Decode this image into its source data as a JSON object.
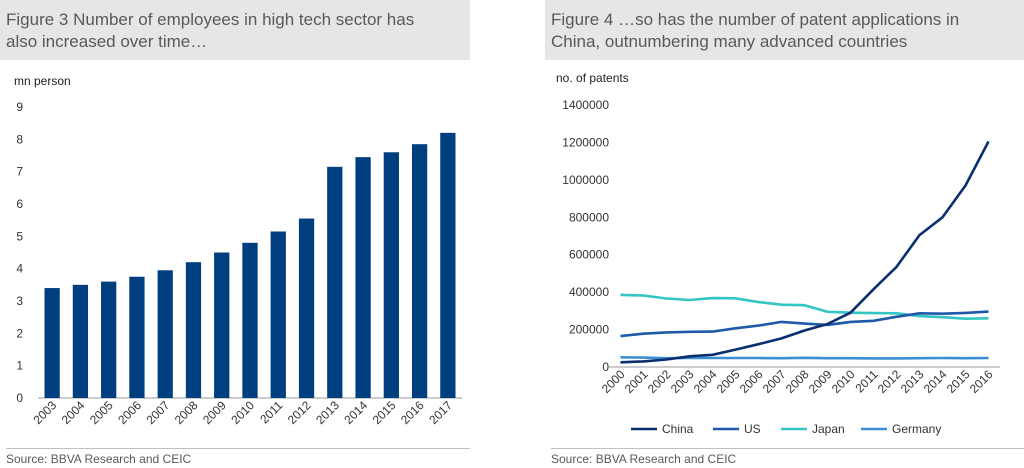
{
  "left": {
    "title_line1": "Figure 3 Number of employees in high tech sector has",
    "title_line2": "also increased over time…",
    "source": "Source: BBVA Research and CEIC"
  },
  "right": {
    "title_line1": "Figure 4 …so has the number of patent applications in",
    "title_line2": "China, outnumbering many advanced countries",
    "source": "Source: BBVA Research and CEIC"
  },
  "colors": {
    "bar": "#003f7f",
    "China": "#0a2f6e",
    "US": "#1e5aa8",
    "Japan": "#33c4c4",
    "Germany": "#3b8ed4",
    "axis": "#999999"
  },
  "chart_data": [
    {
      "type": "bar",
      "title": "Figure 3 Number of employees in high tech sector has also increased over time…",
      "ylabel": "mn person",
      "ylim": [
        0,
        9
      ],
      "yticks": [
        0,
        1,
        2,
        3,
        4,
        5,
        6,
        7,
        8,
        9
      ],
      "categories": [
        "2003",
        "2004",
        "2005",
        "2006",
        "2007",
        "2008",
        "2009",
        "2010",
        "2011",
        "2012",
        "2013",
        "2014",
        "2015",
        "2016",
        "2017"
      ],
      "values": [
        3.4,
        3.5,
        3.6,
        3.75,
        3.95,
        4.2,
        4.5,
        4.8,
        5.15,
        5.55,
        7.15,
        7.45,
        7.6,
        7.85,
        8.2
      ],
      "grid": false
    },
    {
      "type": "line",
      "title": "Figure 4 …so has the number of patent applications in China, outnumbering many advanced countries",
      "ylabel": "no. of patents",
      "ylim": [
        0,
        1400000
      ],
      "yticks": [
        0,
        200000,
        400000,
        600000,
        800000,
        1000000,
        1200000,
        1400000
      ],
      "categories": [
        "2000",
        "2001",
        "2002",
        "2003",
        "2004",
        "2005",
        "2006",
        "2007",
        "2008",
        "2009",
        "2010",
        "2011",
        "2012",
        "2013",
        "2014",
        "2015",
        "2016"
      ],
      "series": [
        {
          "name": "China",
          "values": [
            25000,
            30000,
            40000,
            57000,
            65000,
            93000,
            122000,
            153000,
            195000,
            230000,
            290000,
            415000,
            535000,
            705000,
            800000,
            970000,
            1205000
          ]
        },
        {
          "name": "US",
          "values": [
            165000,
            178000,
            185000,
            188000,
            189000,
            207000,
            221000,
            241000,
            232000,
            225000,
            241000,
            247000,
            268000,
            287000,
            285000,
            289000,
            296000
          ]
        },
        {
          "name": "Japan",
          "values": [
            385000,
            382000,
            366000,
            358000,
            368000,
            367000,
            347000,
            333000,
            330000,
            295000,
            290000,
            288000,
            287000,
            272000,
            266000,
            258000,
            260000
          ]
        },
        {
          "name": "Germany",
          "values": [
            52000,
            50000,
            47000,
            48000,
            48000,
            48000,
            48000,
            47000,
            49000,
            47000,
            47000,
            46000,
            46000,
            47000,
            48000,
            47000,
            48000
          ]
        }
      ],
      "legend": "bottom",
      "grid": false
    }
  ]
}
